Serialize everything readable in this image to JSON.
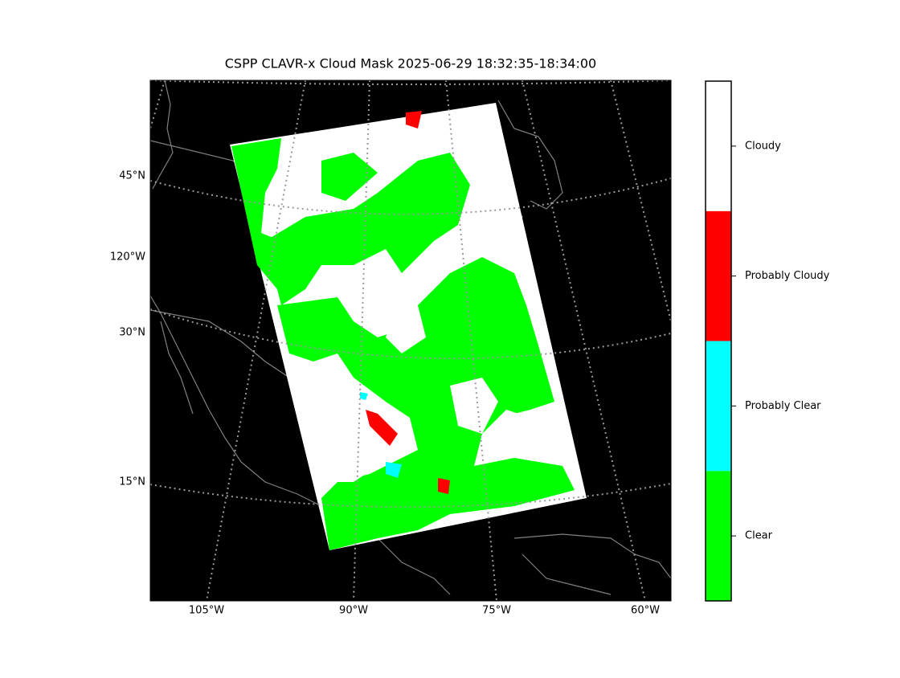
{
  "map": {
    "title": "CSPP CLAVR-x Cloud Mask 2025-06-29 18:32:35-18:34:00",
    "lat_labels": [
      "45°N",
      "120°W",
      "30°N",
      "15°N"
    ],
    "lon_labels": [
      "105°W",
      "90°W",
      "75°W",
      "60°W"
    ]
  },
  "colorbar": {
    "classes": [
      {
        "label": "Clear",
        "color": "#00ff00"
      },
      {
        "label": "Probably Clear",
        "color": "#00ffff"
      },
      {
        "label": "Probably Cloudy",
        "color": "#ff0000"
      },
      {
        "label": "Cloudy",
        "color": "#ffffff"
      }
    ]
  }
}
